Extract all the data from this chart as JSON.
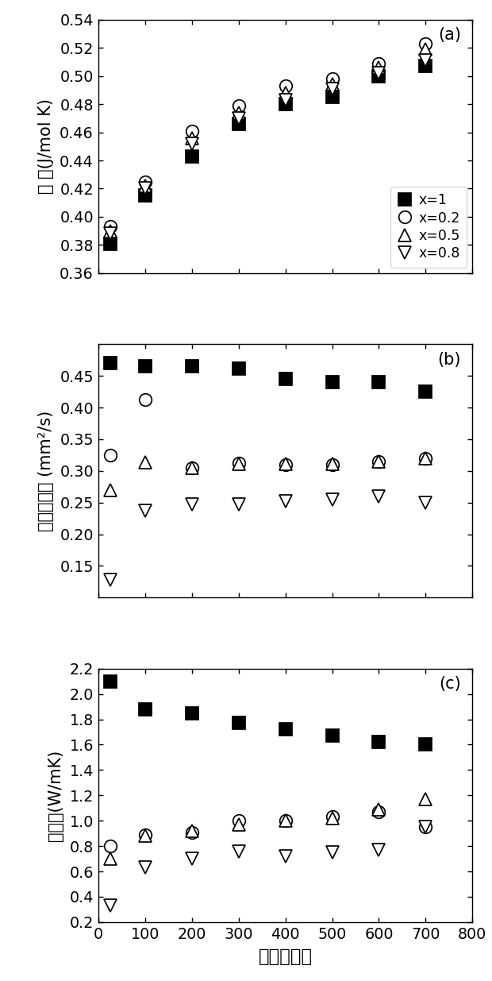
{
  "x": [
    25,
    100,
    200,
    300,
    400,
    500,
    600,
    700
  ],
  "panel_a": {
    "title": "(a)",
    "ylabel": "比 热(J/mol K)",
    "ylim": [
      0.36,
      0.54
    ],
    "yticks": [
      0.36,
      0.38,
      0.4,
      0.42,
      0.44,
      0.46,
      0.48,
      0.5,
      0.52,
      0.54
    ],
    "x1": {
      "label": "x=1",
      "data": [
        0.381,
        0.415,
        0.443,
        0.466,
        0.48,
        0.485,
        0.5,
        0.507
      ]
    },
    "x02": {
      "label": "x=0.2",
      "data": [
        0.393,
        0.425,
        0.461,
        0.479,
        0.493,
        0.498,
        0.509,
        0.523
      ]
    },
    "x05": {
      "label": "x=0.5",
      "data": [
        0.39,
        0.422,
        0.456,
        0.474,
        0.488,
        0.494,
        0.506,
        0.519
      ]
    },
    "x08": {
      "label": "x=0.8",
      "data": [
        0.388,
        0.42,
        0.452,
        0.47,
        0.483,
        0.491,
        0.502,
        0.511
      ]
    }
  },
  "panel_b": {
    "title": "(b)",
    "ylabel": "热扩散系数 (mm²/s)",
    "ylim": [
      0.1,
      0.5
    ],
    "yticks": [
      0.15,
      0.2,
      0.25,
      0.3,
      0.35,
      0.4,
      0.45
    ],
    "x1": {
      "label": "x=1",
      "data": [
        0.47,
        0.465,
        0.465,
        0.462,
        0.445,
        0.44,
        0.44,
        0.425
      ]
    },
    "x02": {
      "label": "x=0.2",
      "data": [
        0.325,
        0.413,
        0.305,
        0.312,
        0.31,
        0.31,
        0.315,
        0.32
      ]
    },
    "x05": {
      "label": "x=0.5",
      "data": [
        0.27,
        0.313,
        0.305,
        0.311,
        0.311,
        0.311,
        0.315,
        0.32
      ]
    },
    "x08": {
      "label": "x=0.8",
      "data": [
        0.128,
        0.237,
        0.247,
        0.247,
        0.252,
        0.255,
        0.26,
        0.25
      ]
    }
  },
  "panel_c": {
    "title": "(c)",
    "ylabel": "热导率(W/mK)",
    "ylim": [
      0.2,
      2.2
    ],
    "yticks": [
      0.2,
      0.4,
      0.6,
      0.8,
      1.0,
      1.2,
      1.4,
      1.6,
      1.8,
      2.0,
      2.2
    ],
    "x1": {
      "label": "x=1",
      "data": [
        2.1,
        1.88,
        1.85,
        1.77,
        1.72,
        1.67,
        1.62,
        1.6
      ]
    },
    "x02": {
      "label": "x=0.2",
      "data": [
        0.8,
        0.89,
        0.91,
        1.0,
        1.0,
        1.03,
        1.07,
        0.95
      ]
    },
    "x05": {
      "label": "x=0.5",
      "data": [
        0.7,
        0.88,
        0.92,
        0.97,
        1.0,
        1.02,
        1.09,
        1.17
      ]
    },
    "x08": {
      "label": "x=0.8",
      "data": [
        0.33,
        0.63,
        0.7,
        0.76,
        0.72,
        0.75,
        0.77,
        0.95
      ]
    }
  },
  "xlabel": "温度（度）",
  "xlim": [
    0,
    800
  ],
  "xticks": [
    0,
    100,
    200,
    300,
    400,
    500,
    600,
    700,
    800
  ],
  "marker_size": 9,
  "figsize": [
    4.96,
    9.88
  ],
  "dpi": 125
}
